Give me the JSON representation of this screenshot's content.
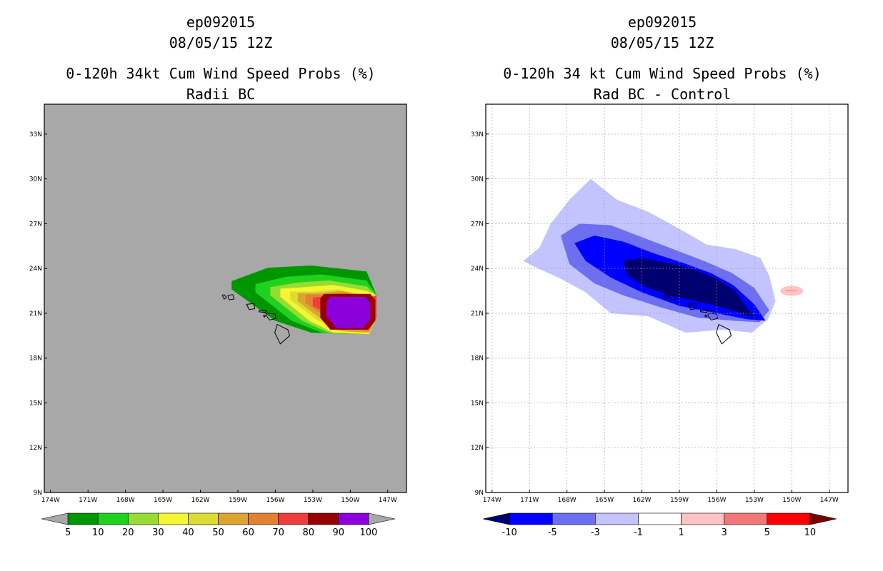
{
  "panels": [
    {
      "id": "left",
      "title_line1": "ep092015",
      "title_line2": "08/05/15 12Z",
      "title_line3": "0-120h 34kt Cum Wind Speed Probs (%)",
      "title_line4": "Radii BC",
      "background": "#a8a8a8",
      "grid": false,
      "colorbar": {
        "labels": [
          "5",
          "10",
          "20",
          "30",
          "40",
          "50",
          "60",
          "70",
          "80",
          "90",
          "100"
        ],
        "colors": [
          "#a8a8a8",
          "#009600",
          "#1ed21e",
          "#96dc32",
          "#f5f532",
          "#dcdc32",
          "#dca532",
          "#e18232",
          "#f03c3c",
          "#960000",
          "#8c00dc",
          "#a8a8a8"
        ]
      }
    },
    {
      "id": "right",
      "title_line1": "ep092015",
      "title_line2": "08/05/15 12Z",
      "title_line3": "0-120h 34 kt Cum Wind Speed Probs (%)",
      "title_line4": "Rad BC - Control",
      "background": "#ffffff",
      "grid": true,
      "colorbar": {
        "labels": [
          "-10",
          "-5",
          "-3",
          "-1",
          "1",
          "3",
          "5",
          "10"
        ],
        "colors": [
          "#000070",
          "#0000ff",
          "#6e6ef0",
          "#c3c3ff",
          "#ffffff",
          "#ffc3c3",
          "#f07878",
          "#ff0000",
          "#7d0000"
        ]
      }
    }
  ],
  "chart_data": [
    {
      "type": "heatmap",
      "title": "0-120h 34kt Cum Wind Speed Probs (%)",
      "subtitle": "Radii BC",
      "x_ticks": [
        "174W",
        "171W",
        "168W",
        "165W",
        "162W",
        "159W",
        "156W",
        "153W",
        "150W",
        "147W"
      ],
      "y_ticks": [
        "9N",
        "12N",
        "15N",
        "18N",
        "21N",
        "24N",
        "27N",
        "30N",
        "33N"
      ],
      "xlim": [
        -174.5,
        -145.5
      ],
      "ylim": [
        9,
        35
      ],
      "contour_levels": [
        5,
        10,
        20,
        30,
        40,
        50,
        60,
        70,
        80,
        90,
        100
      ],
      "max_probability_center": {
        "lon": -150.5,
        "lat": 21.3
      },
      "feature_extent": {
        "lon": [
          -159.5,
          -147.9
        ],
        "lat": [
          19.6,
          24.2
        ]
      }
    },
    {
      "type": "heatmap",
      "title": "0-120h 34 kt Cum Wind Speed Probs (%)",
      "subtitle": "Rad BC - Control",
      "x_ticks": [
        "174W",
        "171W",
        "168W",
        "165W",
        "162W",
        "159W",
        "156W",
        "153W",
        "150W",
        "147W"
      ],
      "y_ticks": [
        "9N",
        "12N",
        "15N",
        "18N",
        "21N",
        "24N",
        "27N",
        "30N",
        "33N"
      ],
      "xlim": [
        -174.5,
        -145.5
      ],
      "ylim": [
        9,
        35
      ],
      "contour_levels": [
        -10,
        -5,
        -3,
        -1,
        1,
        3,
        5,
        10
      ],
      "min_difference_center": {
        "lon": -158.0,
        "lat": 23.0
      },
      "positive_spot": {
        "lon": -150.0,
        "lat": 22.5,
        "range": [
          1,
          3
        ]
      },
      "feature_extent": {
        "lon": [
          -171.5,
          -151.5
        ],
        "lat": [
          18.8,
          30.0
        ]
      }
    }
  ]
}
